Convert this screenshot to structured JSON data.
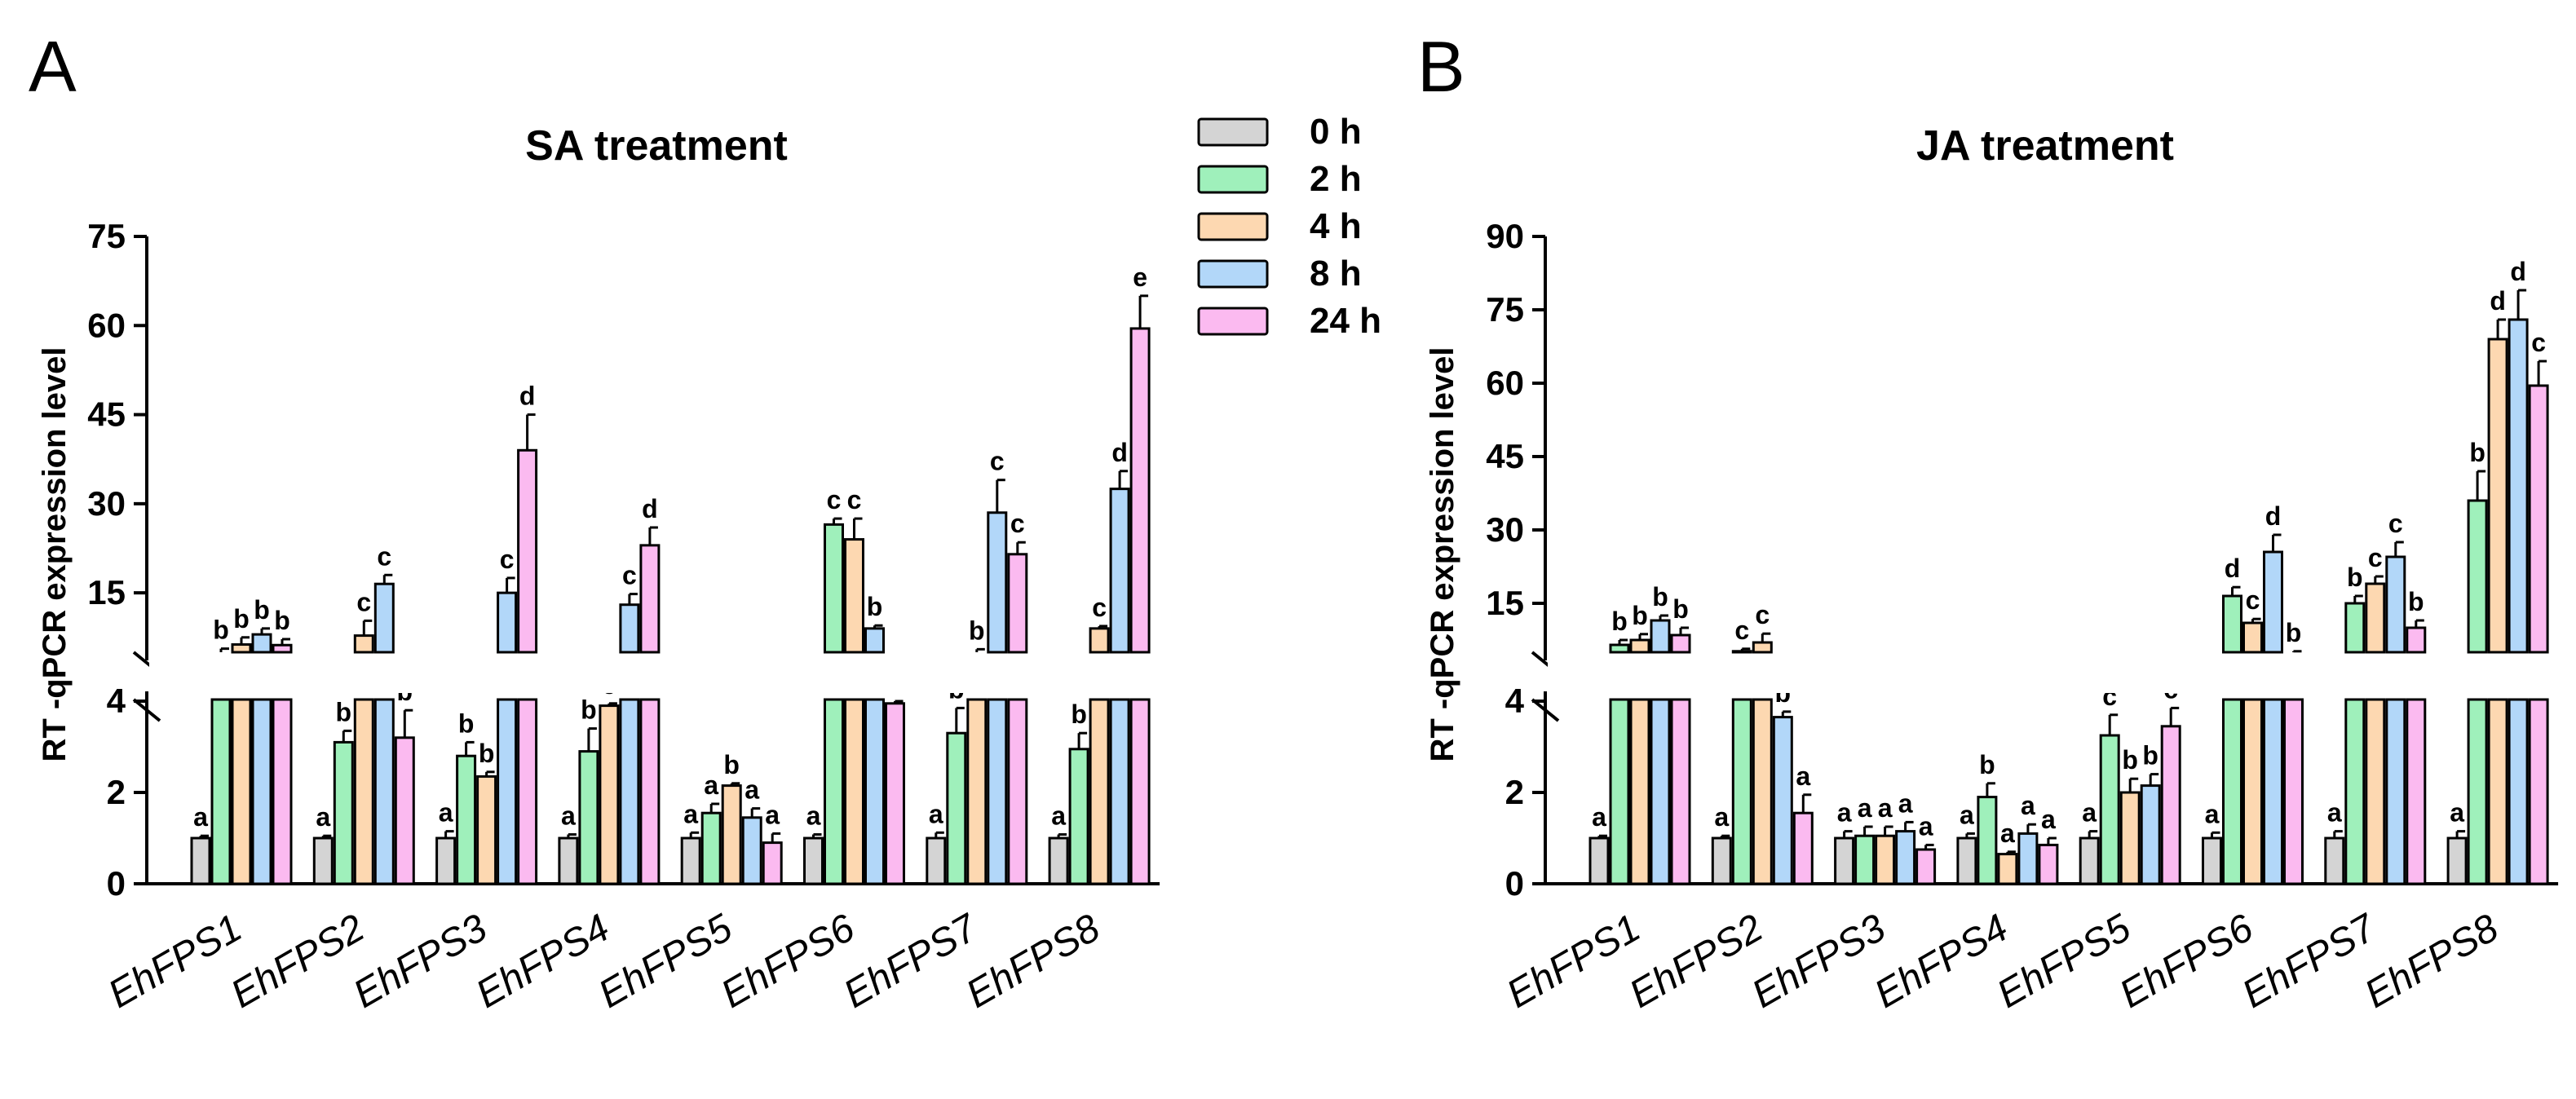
{
  "panels": [
    {
      "letter": "A"
    },
    {
      "letter": "B"
    }
  ],
  "legend": [
    {
      "label": "0 h",
      "color": "#d4d4d4"
    },
    {
      "label": "2 h",
      "color": "#9ff0bb"
    },
    {
      "label": "4 h",
      "color": "#fdd8b1"
    },
    {
      "label": "8 h",
      "color": "#b2d7f9"
    },
    {
      "label": "24 h",
      "color": "#fbbaf0"
    }
  ],
  "chart_data": [
    {
      "type": "bar",
      "title": "SA treatment",
      "ylabel": "RT -qPCR expression level",
      "xlabel": "",
      "categories": [
        "EhFPS1",
        "EhFPS2",
        "EhFPS3",
        "EhFPS4",
        "EhFPS5",
        "EhFPS6",
        "EhFPS7",
        "EhFPS8"
      ],
      "series_names": [
        "0 h",
        "2 h",
        "4 h",
        "8 h",
        "24 h"
      ],
      "axis_break": {
        "lower_range": [
          0,
          4
        ],
        "upper_range": [
          5,
          75
        ]
      },
      "lower_ticks": [
        0,
        2,
        4
      ],
      "upper_ticks": [
        15,
        30,
        45,
        60,
        75
      ],
      "values": [
        [
          1.0,
          5.0,
          6.3,
          8.0,
          6.2
        ],
        [
          1.0,
          3.1,
          7.8,
          16.5,
          3.2
        ],
        [
          1.0,
          2.8,
          2.35,
          15.0,
          39.0
        ],
        [
          1.0,
          2.9,
          3.9,
          13.0,
          23.0
        ],
        [
          1.0,
          1.55,
          2.15,
          1.45,
          0.9
        ],
        [
          1.0,
          26.5,
          24.0,
          9.0,
          3.95
        ],
        [
          1.0,
          3.3,
          5.0,
          28.5,
          21.5
        ],
        [
          1.0,
          2.95,
          9.0,
          32.5,
          59.5
        ]
      ],
      "errors": [
        [
          0.05,
          0.6,
          1.2,
          1.0,
          1.0
        ],
        [
          0.05,
          0.25,
          2.5,
          1.5,
          0.6
        ],
        [
          0.15,
          0.3,
          0.1,
          2.5,
          6.0
        ],
        [
          0.08,
          0.5,
          0.05,
          1.8,
          3.0
        ],
        [
          0.12,
          0.2,
          0.05,
          0.2,
          0.2
        ],
        [
          0.08,
          1.0,
          3.5,
          0.5,
          0.05
        ],
        [
          0.12,
          0.55,
          0.5,
          5.5,
          2.0
        ],
        [
          0.08,
          0.35,
          0.4,
          3.0,
          5.5
        ]
      ],
      "letters": [
        [
          "a",
          "b",
          "b",
          "b",
          "b"
        ],
        [
          "a",
          "b",
          "c",
          "c",
          "b"
        ],
        [
          "a",
          "b",
          "b",
          "c",
          "d"
        ],
        [
          "a",
          "b",
          "c",
          "c",
          "d"
        ],
        [
          "a",
          "a",
          "b",
          "a",
          "a"
        ],
        [
          "a",
          "c",
          "c",
          "b",
          "b"
        ],
        [
          "a",
          "b",
          "b",
          "c",
          "c"
        ],
        [
          "a",
          "b",
          "c",
          "d",
          "e"
        ]
      ]
    },
    {
      "type": "bar",
      "title": "JA treatment",
      "ylabel": "RT -qPCR expression level",
      "xlabel": "",
      "categories": [
        "EhFPS1",
        "EhFPS2",
        "EhFPS3",
        "EhFPS4",
        "EhFPS5",
        "EhFPS6",
        "EhFPS7",
        "EhFPS8"
      ],
      "series_names": [
        "0 h",
        "2 h",
        "4 h",
        "8 h",
        "24 h"
      ],
      "axis_break": {
        "lower_range": [
          0,
          4
        ],
        "upper_range": [
          5,
          90
        ]
      },
      "lower_ticks": [
        0,
        2,
        4
      ],
      "upper_ticks": [
        15,
        30,
        45,
        60,
        75,
        90
      ],
      "values": [
        [
          1.0,
          6.5,
          7.5,
          11.5,
          8.5
        ],
        [
          1.0,
          5.2,
          7.0,
          3.65,
          1.55
        ],
        [
          1.0,
          1.05,
          1.05,
          1.15,
          0.75
        ],
        [
          1.0,
          1.9,
          0.65,
          1.1,
          0.85
        ],
        [
          1.0,
          3.25,
          2.0,
          2.15,
          3.45
        ],
        [
          1.0,
          16.5,
          11.0,
          25.5,
          4.9
        ],
        [
          1.0,
          15.0,
          19.0,
          24.5,
          10.0
        ],
        [
          1.0,
          36.0,
          69.0,
          73.0,
          59.5
        ]
      ],
      "errors": [
        [
          0.05,
          1.0,
          1.2,
          1.0,
          1.5
        ],
        [
          0.05,
          0.5,
          1.8,
          0.12,
          0.4
        ],
        [
          0.15,
          0.2,
          0.2,
          0.2,
          0.1
        ],
        [
          0.1,
          0.3,
          0.05,
          0.2,
          0.15
        ],
        [
          0.15,
          0.45,
          0.3,
          0.25,
          0.4
        ],
        [
          0.12,
          1.8,
          0.8,
          3.5,
          0.3
        ],
        [
          0.15,
          1.5,
          1.5,
          3.0,
          1.5
        ],
        [
          0.15,
          6.0,
          4.0,
          6.0,
          5.0
        ]
      ],
      "letters": [
        [
          "a",
          "b",
          "b",
          "b",
          "b"
        ],
        [
          "a",
          "c",
          "c",
          "b",
          "a"
        ],
        [
          "a",
          "a",
          "a",
          "a",
          "a"
        ],
        [
          "a",
          "b",
          "a",
          "a",
          "a"
        ],
        [
          "a",
          "c",
          "b",
          "b",
          "c"
        ],
        [
          "a",
          "d",
          "c",
          "d",
          "b"
        ],
        [
          "a",
          "b",
          "c",
          "c",
          "b"
        ],
        [
          "a",
          "b",
          "d",
          "d",
          "c"
        ]
      ]
    }
  ]
}
